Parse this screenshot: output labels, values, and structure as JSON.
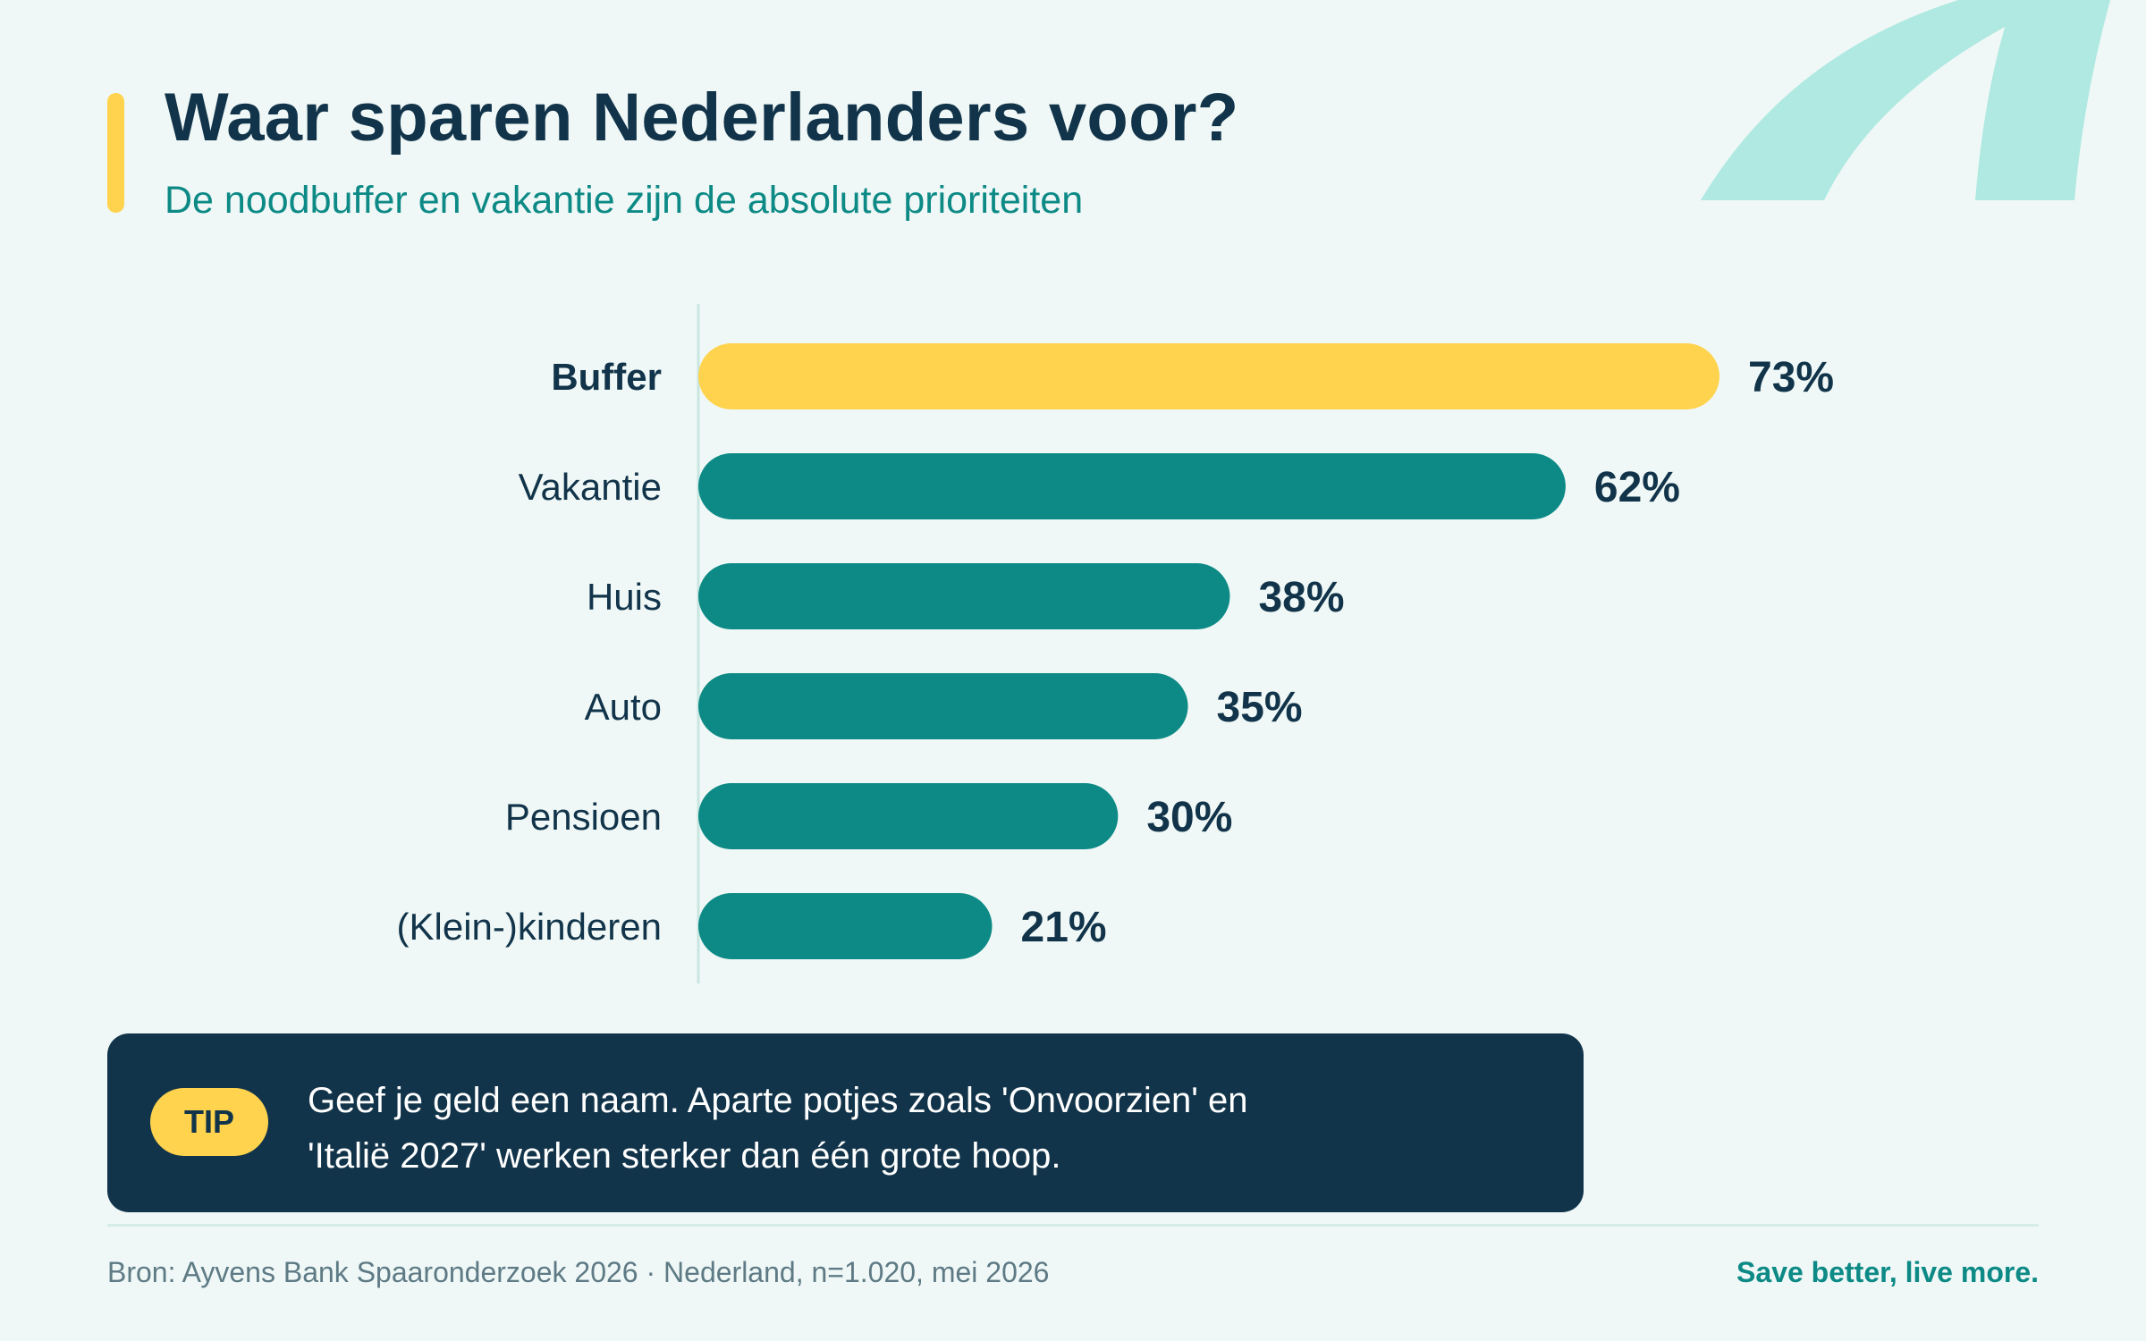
{
  "header": {
    "title": "Waar sparen Nederlanders voor?",
    "subtitle": "De noodbuffer en vakantie zijn de absolute prioriteiten"
  },
  "chart_data": {
    "type": "bar",
    "orientation": "horizontal",
    "categories": [
      "Buffer",
      "Vakantie",
      "Huis",
      "Auto",
      "Pensioen",
      "(Klein-)kinderen"
    ],
    "values": [
      73,
      62,
      38,
      35,
      30,
      21
    ],
    "value_labels": [
      "73%",
      "62%",
      "38%",
      "35%",
      "30%",
      "21%"
    ],
    "unit": "%",
    "xlim": [
      0,
      100
    ],
    "highlight_index": 0,
    "grid": false,
    "legend": "none"
  },
  "tip": {
    "badge": "TIP",
    "lines": [
      "Geef je geld een naam. Aparte potjes zoals 'Onvoorzien' en",
      "'Italië 2027' werken sterker dan één grote hoop."
    ]
  },
  "footer": {
    "source": "Bron: Ayvens Bank Spaaronderzoek 2026 · Nederland, n=1.020, mei 2026",
    "tagline": "Save better, live more."
  },
  "colors": {
    "background": "#eff8f6",
    "navy": "#12344a",
    "teal": "#0d8a86",
    "highlight": "#ffd34e",
    "decoration": "#afe9e1"
  }
}
